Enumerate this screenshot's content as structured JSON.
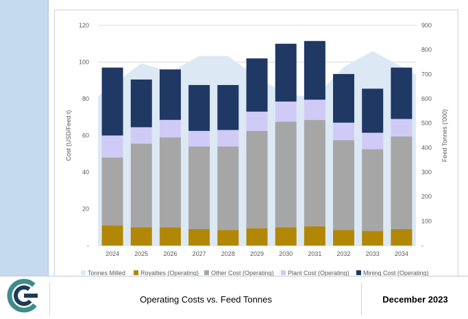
{
  "footer": {
    "title": "Operating Costs vs. Feed Tonnes",
    "date": "December 2023"
  },
  "colors": {
    "tonnes_area": "#dce9f5",
    "royalties": "#b28705",
    "other_cost": "#a6a6a6",
    "plant_cost": "#cfcbf6",
    "mining_cost": "#1f3864",
    "logo_teal": "#3f8c8c",
    "logo_dark": "#1c3b57"
  },
  "logo": {
    "icon": "company-c-logo-icon"
  },
  "chart_data": {
    "type": "bar",
    "stacked": true,
    "categories": [
      "2024",
      "2025",
      "2026",
      "2027",
      "2028",
      "2029",
      "2030",
      "2031",
      "2032",
      "2033",
      "2034"
    ],
    "series": [
      {
        "name": "Royalties (Operating)",
        "axis": "left",
        "values": [
          11,
          10,
          10,
          9,
          8.5,
          9.5,
          10,
          10.5,
          8.5,
          8,
          9
        ]
      },
      {
        "name": "Other Cost (Operating)",
        "axis": "left",
        "values": [
          37,
          45.5,
          49,
          45,
          45.5,
          53,
          57.5,
          58,
          49,
          44.5,
          50.5
        ]
      },
      {
        "name": "Plant Cost (Operating)",
        "axis": "left",
        "values": [
          12,
          9,
          9.5,
          8.5,
          9,
          10.5,
          11,
          11,
          9.5,
          9,
          9.5
        ]
      },
      {
        "name": "Mining Cost (Operating)",
        "axis": "left",
        "values": [
          37,
          26,
          27.5,
          25,
          24.5,
          29,
          31.5,
          32,
          26.5,
          24,
          28
        ]
      },
      {
        "name": "Tonnes Milled",
        "axis": "right",
        "type": "area",
        "values": [
          610,
          745,
          710,
          775,
          775,
          690,
          620,
          605,
          730,
          795,
          700
        ]
      }
    ],
    "legend_order": [
      "Tonnes Milled",
      "Royalties (Operating)",
      "Other Cost (Operating)",
      "Plant Cost (Operating)",
      "Mining Cost (Operating)"
    ],
    "ylabel": "Cost (USD/Feed t)",
    "y2label": "Feed Tonnes ('000)",
    "ylim": [
      0,
      120
    ],
    "yticks": [
      "-",
      "20",
      "40",
      "60",
      "80",
      "100",
      "120"
    ],
    "y2lim": [
      0,
      900
    ],
    "y2ticks": [
      "-",
      "100",
      "200",
      "300",
      "400",
      "500",
      "600",
      "700",
      "800",
      "900"
    ],
    "grid": true,
    "legend_position": "bottom"
  }
}
